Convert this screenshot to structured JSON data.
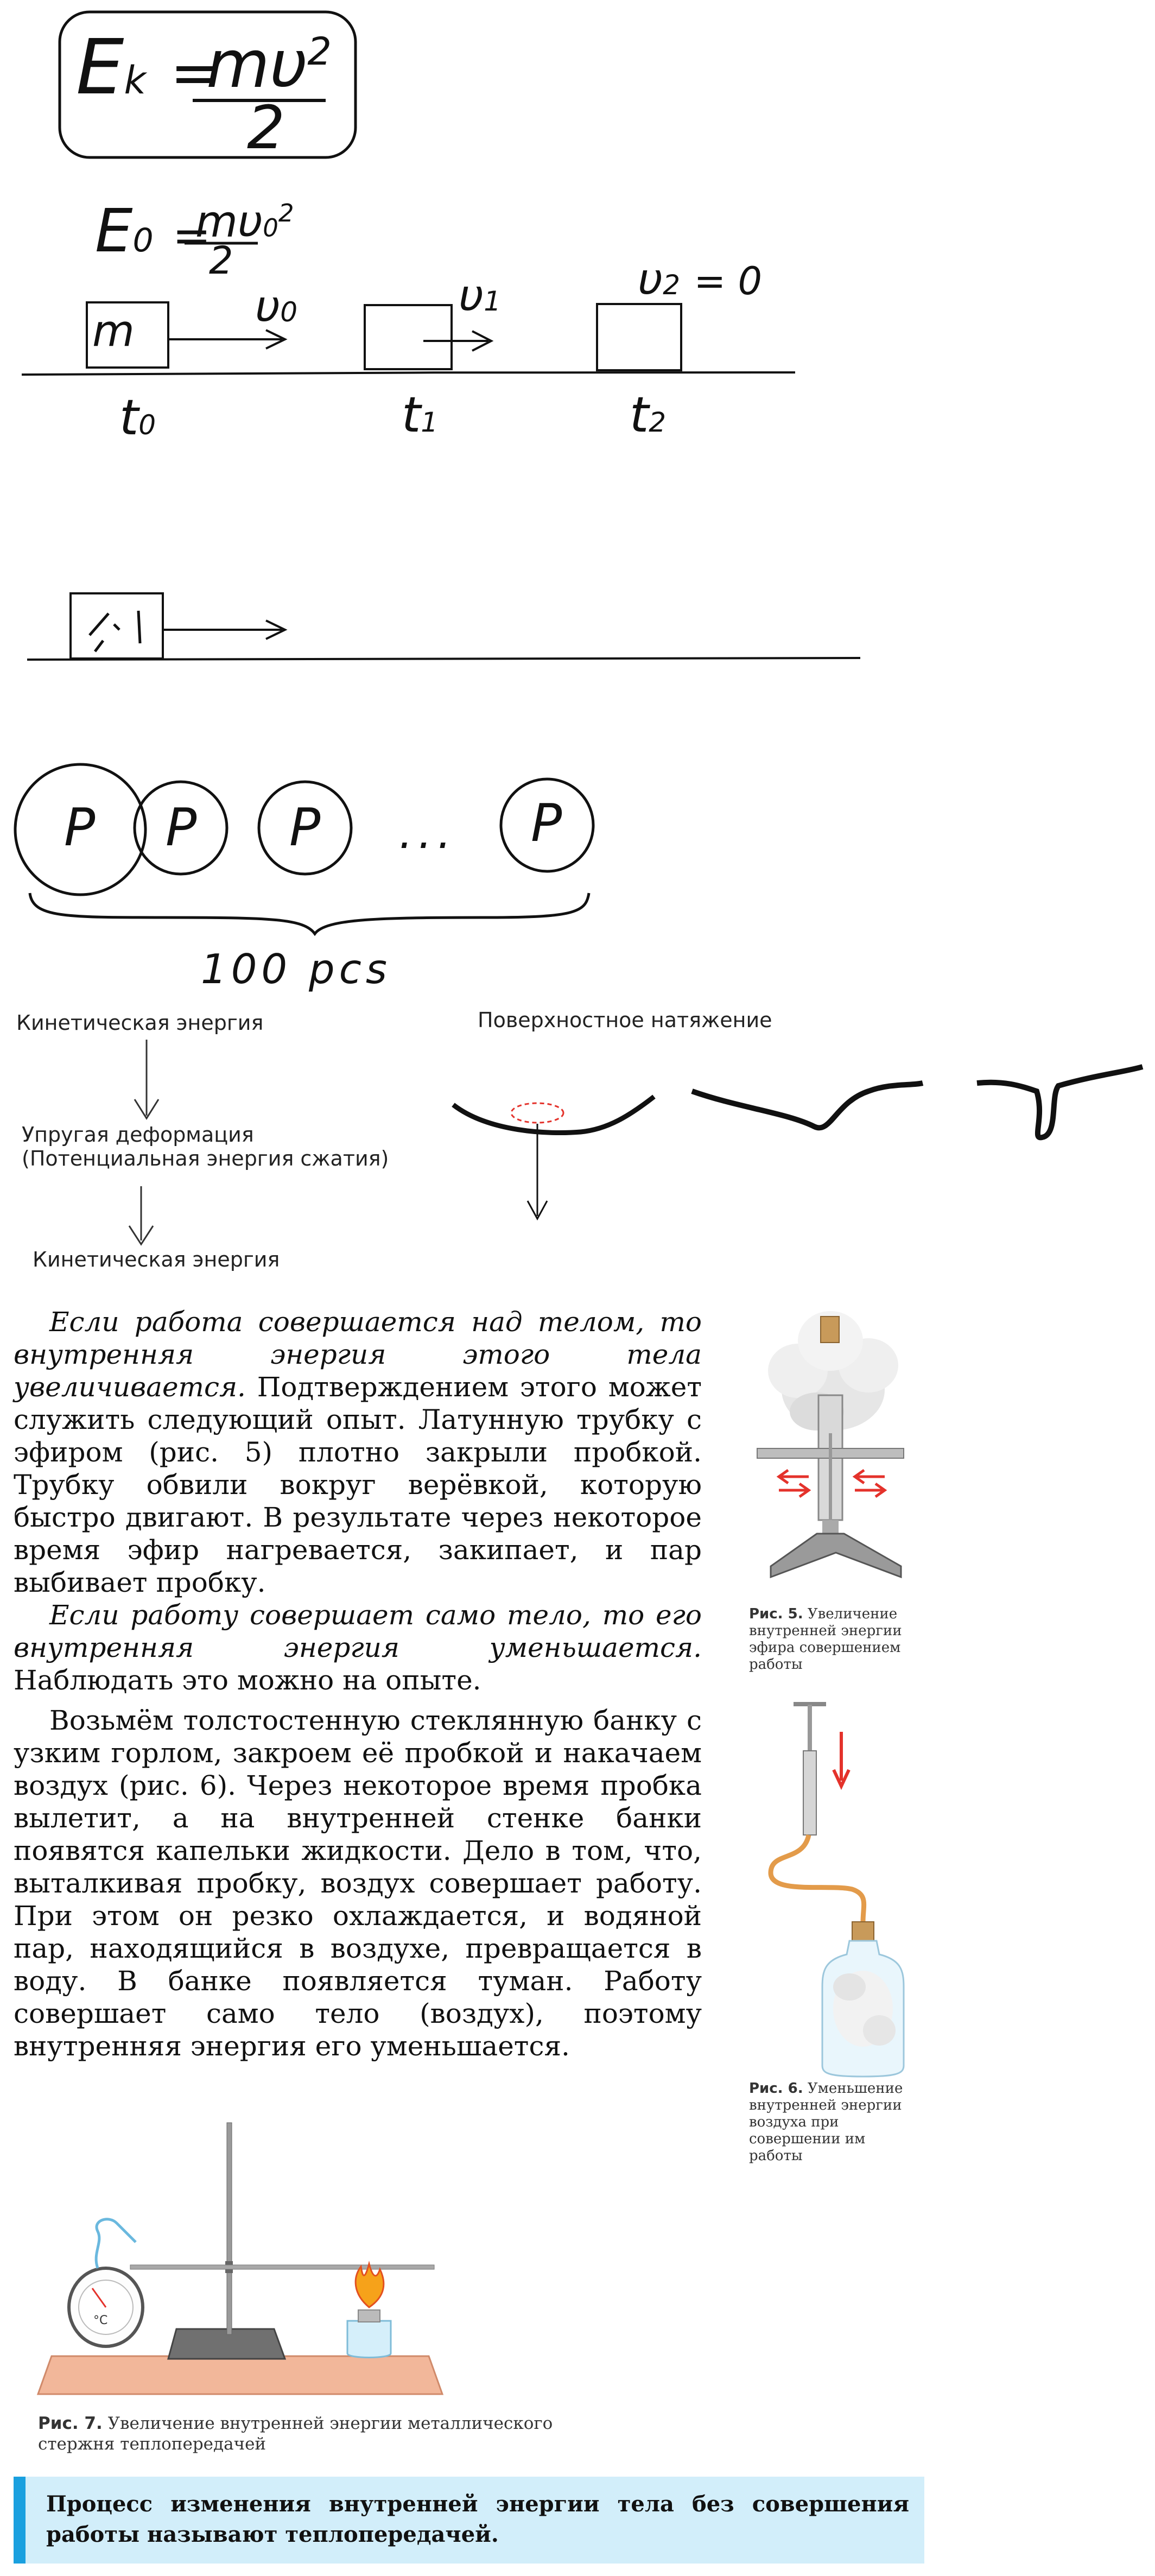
{
  "board": {
    "formula_ek": {
      "lhs": "E",
      "sub": "k",
      "eq": "=",
      "num": "mυ",
      "sup": "2",
      "den": "2"
    },
    "formula_e0": {
      "lhs": "E",
      "sub": "0",
      "eq": "=",
      "num": "mυ",
      "num_sub": "0",
      "sup": "2",
      "den": "2"
    },
    "block_mass": "m",
    "velocities": {
      "v0": "υ",
      "v0_sub": "0",
      "v1": "υ",
      "v1_sub": "1",
      "v2": "υ",
      "v2_sub": "2",
      "v2_val": "= 0"
    },
    "times": {
      "t0": "t",
      "t0_sub": "0",
      "t1": "t",
      "t1_sub": "1",
      "t2": "t",
      "t2_sub": "2"
    },
    "circles": [
      "P",
      "P",
      "P",
      "P"
    ],
    "ellipsis": "...",
    "brace_label": "100 pcs",
    "flow": [
      "Кинетическая энергия",
      "Упругая деформация",
      "(Потенциальная энергия сжатия)",
      "Кинетическая энергия"
    ],
    "surface_title": "Поверхностное натяжение"
  },
  "text": {
    "p1_italic": "Если работа совершается над телом, то внутренняя энергия этого тела увеличивается.",
    "p1_rest": " Подтверждением этого может служить следующий опыт. Латунную трубку с эфиром (рис. 5) плотно закрыли пробкой. Трубку обвили вокруг верёвкой, которую быстро двигают. В результате через некоторое время эфир нагревается, закипает, и пар выбивает пробку.",
    "p2_italic": "Если работу совершает само тело, то его внутренняя энергия уменьшается.",
    "p2_rest": " Наблюдать это можно на опыте.",
    "p3": "Возьмём толстостенную стеклянную банку с узким горлом, закроем её пробкой и накачаем воздух (рис. 6). Через некоторое время пробка вылетит, а на внутренней стенке банки появятся капельки жидкости. Дело в том, что, выталкивая пробку, воздух совершает работу. При этом он резко охлаждается, и водяной пар, находящийся в воздухе, превращается в воду. В банке появляется туман. Работу совершает само тело (воздух), поэтому внутренняя энергия его уменьшается."
  },
  "figures": {
    "fig5_num": "Рис. 5.",
    "fig5_text": "Увеличение внутренней энергии эфира совершением работы",
    "fig6_num": "Рис. 6.",
    "fig6_text": "Уменьшение внутренней энергии воздуха при совершении им работы",
    "fig7_num": "Рис. 7.",
    "fig7_text": "Увеличение внутренней энергии металлического стержня теплопередачей",
    "thermometer_unit": "°C"
  },
  "definition": "Процесс изменения внутренней энергии тела без совершения работы называют теплопередачей.",
  "colors": {
    "box_bg": "#d2eefa",
    "box_bar": "#1aa0df",
    "arrow_red": "#e4322b",
    "table_wood": "#f2b79a"
  }
}
